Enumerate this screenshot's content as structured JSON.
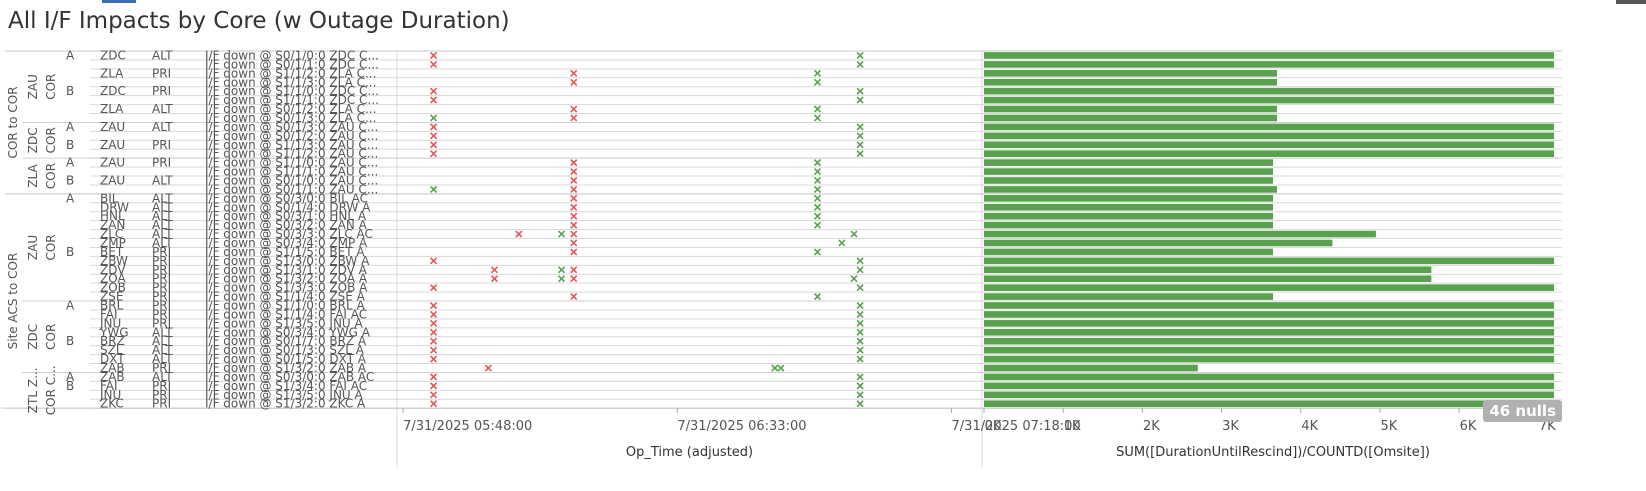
{
  "title": "All I/F Impacts by Core (w Outage Duration)",
  "nulls_badge": "46 nulls",
  "colors": {
    "red": "#e15759",
    "green": "#59a14f",
    "bar": "#59a14f",
    "grid": "#d9d9d9"
  },
  "groups": [
    {
      "label": "COR to COR"
    },
    {
      "label": "Site ACS to COR"
    }
  ],
  "sub_groups": [
    {
      "label": "ZAU COR"
    },
    {
      "label": "ZDC COR"
    },
    {
      "label": "ZLA COR"
    },
    {
      "label": "ZAU COR"
    },
    {
      "label": "ZDC COR"
    },
    {
      "label": "ZTL Z... COR C..."
    }
  ],
  "rows": [
    {
      "ab": "A",
      "site": "ZDC",
      "role": "ALT",
      "iface": "I/F down @ S0/1/0:0 ZDC C...",
      "red": [
        5
      ],
      "green": [
        75
      ],
      "bar": 7200
    },
    {
      "ab": "",
      "site": "",
      "role": "",
      "iface": "I/F down @ S0/1/1:0 ZDC C...",
      "red": [
        5
      ],
      "green": [
        75
      ],
      "bar": 7200
    },
    {
      "ab": "",
      "site": "ZLA",
      "role": "PRI",
      "iface": "I/F down @ S1/1/2:0 ZLA C...",
      "red": [
        28
      ],
      "green": [
        68
      ],
      "bar": 3700
    },
    {
      "ab": "",
      "site": "",
      "role": "",
      "iface": "I/F down @ S1/1/3:0 ZLA C...",
      "red": [
        28
      ],
      "green": [
        68
      ],
      "bar": 3700
    },
    {
      "ab": "B",
      "site": "ZDC",
      "role": "PRI",
      "iface": "I/F down @ S1/1/0:0 ZDC C...",
      "red": [
        5
      ],
      "green": [
        75
      ],
      "bar": 7200
    },
    {
      "ab": "",
      "site": "",
      "role": "",
      "iface": "I/F down @ S1/1/1:0 ZDC C...",
      "red": [
        5
      ],
      "green": [
        75
      ],
      "bar": 7200
    },
    {
      "ab": "",
      "site": "ZLA",
      "role": "ALT",
      "iface": "I/F down @ S0/1/2:0 ZLA C...",
      "red": [
        28
      ],
      "green": [
        68
      ],
      "bar": 3700
    },
    {
      "ab": "",
      "site": "",
      "role": "",
      "iface": "I/F down @ S0/1/3:0 ZLA C...",
      "red": [
        28
      ],
      "green": [
        5,
        68
      ],
      "bar": 3700
    },
    {
      "ab": "A",
      "site": "ZAU",
      "role": "ALT",
      "iface": "I/F down @ S0/1/3:0 ZAU C...",
      "red": [
        5
      ],
      "green": [
        75
      ],
      "bar": 7200
    },
    {
      "ab": "",
      "site": "",
      "role": "",
      "iface": "I/F down @ S0/1/2:0 ZAU C...",
      "red": [
        5
      ],
      "green": [
        75
      ],
      "bar": 7200
    },
    {
      "ab": "B",
      "site": "ZAU",
      "role": "PRI",
      "iface": "I/F down @ S1/1/3:0 ZAU C...",
      "red": [
        5
      ],
      "green": [
        75
      ],
      "bar": 7200
    },
    {
      "ab": "",
      "site": "",
      "role": "",
      "iface": "I/F down @ S1/1/2:0 ZAU C...",
      "red": [
        5
      ],
      "green": [
        75
      ],
      "bar": 7200
    },
    {
      "ab": "A",
      "site": "ZAU",
      "role": "PRI",
      "iface": "I/F down @ S1/1/0:0 ZAU C...",
      "red": [
        28
      ],
      "green": [
        68
      ],
      "bar": 3650
    },
    {
      "ab": "",
      "site": "",
      "role": "",
      "iface": "I/F down @ S1/1/1:0 ZAU C...",
      "red": [
        28
      ],
      "green": [
        68
      ],
      "bar": 3650
    },
    {
      "ab": "B",
      "site": "ZAU",
      "role": "ALT",
      "iface": "I/F down @ S0/1/0:0 ZAU C...",
      "red": [
        28
      ],
      "green": [
        68
      ],
      "bar": 3650
    },
    {
      "ab": "",
      "site": "",
      "role": "",
      "iface": "I/F down @ S0/1/1:0 ZAU C...",
      "red": [
        28
      ],
      "green": [
        5,
        68
      ],
      "bar": 3700
    },
    {
      "ab": "A",
      "site": "BIL",
      "role": "ALT",
      "iface": "I/F down @ S0/3/0:0 BIL AC",
      "red": [
        28
      ],
      "green": [
        68
      ],
      "bar": 3650
    },
    {
      "ab": "",
      "site": "DRW",
      "role": "ALT",
      "iface": "I/F down @ S0/1/4:0 DRW A",
      "red": [
        28
      ],
      "green": [
        68
      ],
      "bar": 3650
    },
    {
      "ab": "",
      "site": "HNL",
      "role": "ALT",
      "iface": "I/F down @ S0/3/1:0 HNL A",
      "red": [
        28
      ],
      "green": [
        68
      ],
      "bar": 3650
    },
    {
      "ab": "",
      "site": "ZAN",
      "role": "ALT",
      "iface": "I/F down @ S0/3/2:0 ZAN A",
      "red": [
        28
      ],
      "green": [
        68
      ],
      "bar": 3650
    },
    {
      "ab": "",
      "site": "ZLC",
      "role": "ALT",
      "iface": "I/F down @ S0/3/3:0 ZLC AC",
      "red": [
        19,
        28
      ],
      "green": [
        26,
        74
      ],
      "bar": 4950
    },
    {
      "ab": "",
      "site": "ZMP",
      "role": "ALT",
      "iface": "I/F down @ S0/3/4:0 ZMP A",
      "red": [
        28
      ],
      "green": [
        72
      ],
      "bar": 4400
    },
    {
      "ab": "B",
      "site": "BET",
      "role": "PRI",
      "iface": "I/F down @ S1/1/5:0 BET A",
      "red": [
        28
      ],
      "green": [
        68
      ],
      "bar": 3650
    },
    {
      "ab": "",
      "site": "ZBW",
      "role": "PRI",
      "iface": "I/F down @ S1/3/0:0 ZBW A",
      "red": [
        5
      ],
      "green": [
        75
      ],
      "bar": 7200
    },
    {
      "ab": "",
      "site": "ZDV",
      "role": "PRI",
      "iface": "I/F down @ S1/3/1:0 ZDV A",
      "red": [
        15,
        28
      ],
      "green": [
        26,
        75
      ],
      "bar": 5650
    },
    {
      "ab": "",
      "site": "ZOA",
      "role": "PRI",
      "iface": "I/F down @ S1/3/2:0 ZOA A",
      "red": [
        15,
        28
      ],
      "green": [
        26,
        74
      ],
      "bar": 5650
    },
    {
      "ab": "",
      "site": "ZOB",
      "role": "PRI",
      "iface": "I/F down @ S1/3/3:0 ZOB A",
      "red": [
        5
      ],
      "green": [
        75
      ],
      "bar": 7200
    },
    {
      "ab": "",
      "site": "ZSE",
      "role": "PRI",
      "iface": "I/F down @ S1/1/4:0 ZSE A",
      "red": [
        28
      ],
      "green": [
        68
      ],
      "bar": 3650
    },
    {
      "ab": "A",
      "site": "BRL",
      "role": "PRI",
      "iface": "I/F down @ S1/1/0:0 BRL A",
      "red": [
        5
      ],
      "green": [
        75
      ],
      "bar": 7200
    },
    {
      "ab": "",
      "site": "FAI",
      "role": "PRI",
      "iface": "I/F down @ S1/1/4:0 FAI AC",
      "red": [
        5
      ],
      "green": [
        75
      ],
      "bar": 7200
    },
    {
      "ab": "",
      "site": "JNU",
      "role": "PRI",
      "iface": "I/F down @ S1/3/5:0 JNU A",
      "red": [
        5
      ],
      "green": [
        75
      ],
      "bar": 7200
    },
    {
      "ab": "",
      "site": "YWG",
      "role": "ALT",
      "iface": "I/F down @ S0/3/4:0 YWG A",
      "red": [
        5
      ],
      "green": [
        75
      ],
      "bar": 7200
    },
    {
      "ab": "B",
      "site": "BRZ",
      "role": "ALT",
      "iface": "I/F down @ S0/1/7:0 BRZ A",
      "red": [
        5
      ],
      "green": [
        75
      ],
      "bar": 7200
    },
    {
      "ab": "",
      "site": "SZL",
      "role": "ALT",
      "iface": "I/F down @ S0/1/3:0 SZL A",
      "red": [
        5
      ],
      "green": [
        75
      ],
      "bar": 7200
    },
    {
      "ab": "",
      "site": "DXT",
      "role": "ALT",
      "iface": "I/F down @ S0/1/5:0 DXT A",
      "red": [
        5
      ],
      "green": [
        75
      ],
      "bar": 7200
    },
    {
      "ab": "",
      "site": "ZAB",
      "role": "PRI",
      "iface": "I/F down @ S1/3/2:0 ZAB A",
      "red": [
        14
      ],
      "green": [
        61,
        62
      ],
      "bar": 2700
    },
    {
      "ab": "A",
      "site": "ZAB",
      "role": "ALT",
      "iface": "I/F down @ S0/3/0:0 ZAB AC",
      "red": [
        5
      ],
      "green": [
        75
      ],
      "bar": 7200
    },
    {
      "ab": "B",
      "site": "FAI",
      "role": "PRI",
      "iface": "I/F down @ S1/3/4:0 FAI AC",
      "red": [
        5
      ],
      "green": [
        75
      ],
      "bar": 7200
    },
    {
      "ab": "",
      "site": "JNU",
      "role": "PRI",
      "iface": "I/F down @ S1/3/5:0 JNU A",
      "red": [
        5
      ],
      "green": [
        75
      ],
      "bar": 7200
    },
    {
      "ab": "",
      "site": "ZKC",
      "role": "PRI",
      "iface": "I/F down @ S1/3/2:0 ZKC A",
      "red": [
        5
      ],
      "green": [
        75
      ],
      "bar": 7200
    }
  ],
  "chart_data": [
    {
      "type": "scatter",
      "xlabel": "Op_Time (adjusted)",
      "x_ticks": [
        "7/31/2025 05:48:00",
        "7/31/2025 06:33:00",
        "7/31/2025 07:18:00"
      ],
      "x_tick_minutes": [
        0,
        45,
        90
      ],
      "xlim_minutes": [
        -1,
        95
      ],
      "marks": [
        "red x = I/F down",
        "green x = rescind"
      ]
    },
    {
      "type": "bar",
      "orientation": "horizontal",
      "xlabel": "SUM([DurationUntilRescind])/COUNTD([Omsite])",
      "x_ticks": [
        "0K",
        "1K",
        "2K",
        "3K",
        "4K",
        "5K",
        "6K",
        "7K"
      ],
      "xlim": [
        0,
        7300
      ],
      "nulls": "46 nulls"
    }
  ]
}
